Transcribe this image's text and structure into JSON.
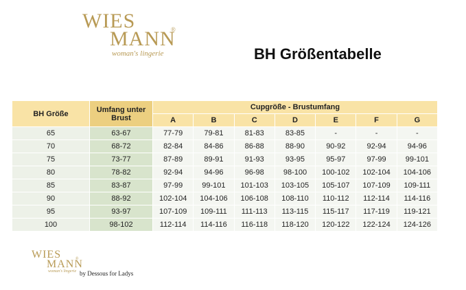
{
  "header": {
    "logo": {
      "line1": "WIES",
      "line2": "MANN",
      "mark": "®",
      "tagline": "woman's lingerie"
    },
    "title": "BH Größentabelle"
  },
  "table": {
    "col_size": "BH Größe",
    "col_underbust": "Umfang unter Brust",
    "col_cups": "Cupgröße - Brustumfang",
    "cups": [
      "A",
      "B",
      "C",
      "D",
      "E",
      "F",
      "G"
    ],
    "rows": [
      [
        "65",
        "63-67",
        "77-79",
        "79-81",
        "81-83",
        "83-85",
        "-",
        "-",
        "-"
      ],
      [
        "70",
        "68-72",
        "82-84",
        "84-86",
        "86-88",
        "88-90",
        "90-92",
        "92-94",
        "94-96"
      ],
      [
        "75",
        "73-77",
        "87-89",
        "89-91",
        "91-93",
        "93-95",
        "95-97",
        "97-99",
        "99-101"
      ],
      [
        "80",
        "78-82",
        "92-94",
        "94-96",
        "96-98",
        "98-100",
        "100-102",
        "102-104",
        "104-106"
      ],
      [
        "85",
        "83-87",
        "97-99",
        "99-101",
        "101-103",
        "103-105",
        "105-107",
        "107-109",
        "109-111"
      ],
      [
        "90",
        "88-92",
        "102-104",
        "104-106",
        "106-108",
        "108-110",
        "110-112",
        "112-114",
        "114-116"
      ],
      [
        "95",
        "93-97",
        "107-109",
        "109-111",
        "111-113",
        "113-115",
        "115-117",
        "117-119",
        "119-121"
      ],
      [
        "100",
        "98-102",
        "112-114",
        "114-116",
        "116-118",
        "118-120",
        "120-122",
        "122-124",
        "124-126"
      ]
    ]
  },
  "footer": {
    "logo": {
      "line1": "WIES",
      "line2": "MANN",
      "mark": "®",
      "tagline": "woman's lingerie"
    },
    "byline": "by Dessous for Ladys"
  }
}
